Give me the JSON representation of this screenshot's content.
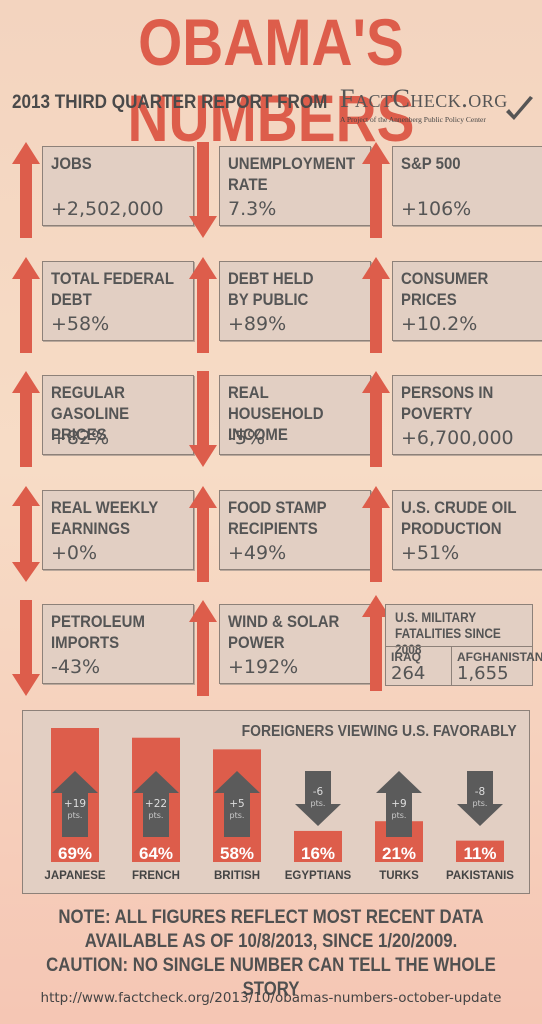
{
  "header": {
    "title": "OBAMA'S NUMBERS",
    "subtitle": "2013 THIRD QUARTER REPORT FROM",
    "logo_name": "FactCheck.org",
    "logo_tagline": "A Project of the Annenberg Public Policy Center"
  },
  "colors": {
    "accent": "#dd5d4b",
    "down_arrow_grey": "#5b5b5b",
    "box": "#e2cfc3"
  },
  "stats": [
    {
      "label": "JOBS",
      "value": "+2,502,000",
      "direction": "up"
    },
    {
      "label": "UNEMPLOYMENT\nRATE",
      "value": "7.3%",
      "direction": "down"
    },
    {
      "label": "S&P 500",
      "value": "+106%",
      "direction": "up"
    },
    {
      "label": "TOTAL FEDERAL\nDEBT",
      "value": "+58%",
      "direction": "up"
    },
    {
      "label": "DEBT HELD\nBY PUBLIC",
      "value": "+89%",
      "direction": "up"
    },
    {
      "label": "CONSUMER\nPRICES",
      "value": "+10.2%",
      "direction": "up"
    },
    {
      "label": "REGULAR GASOLINE\nPRICES",
      "value": "+82%",
      "direction": "up"
    },
    {
      "label": "REAL HOUSEHOLD\nINCOME",
      "value": "-5%",
      "direction": "down"
    },
    {
      "label": "PERSONS IN\nPOVERTY",
      "value": "+6,700,000",
      "direction": "up"
    },
    {
      "label": "REAL WEEKLY\nEARNINGS",
      "value": "+0%",
      "direction": "both"
    },
    {
      "label": "FOOD STAMP\nRECIPIENTS",
      "value": "+49%",
      "direction": "up"
    },
    {
      "label": "U.S. CRUDE OIL\nPRODUCTION",
      "value": "+51%",
      "direction": "up"
    },
    {
      "label": "PETROLEUM\nIMPORTS",
      "value": "-43%",
      "direction": "down"
    },
    {
      "label": "WIND & SOLAR\nPOWER",
      "value": "+192%",
      "direction": "up"
    }
  ],
  "military": {
    "title": "U.S. MILITARY FATALITIES SINCE 2008",
    "iraq_label": "IRAQ",
    "iraq_value": "264",
    "afghanistan_label": "AFGHANISTAN",
    "afghanistan_value": "1,655",
    "direction": "up"
  },
  "favorability": {
    "title": "FOREIGNERS VIEWING U.S. FAVORABLY",
    "pts_unit": "pts."
  },
  "chart_data": {
    "type": "bar",
    "title": "FOREIGNERS VIEWING U.S. FAVORABLY",
    "categories": [
      "JAPANESE",
      "FRENCH",
      "BRITISH",
      "EGYPTIANS",
      "TURKS",
      "PAKISTANIS"
    ],
    "values": [
      69,
      64,
      58,
      16,
      21,
      11
    ],
    "value_labels": [
      "69%",
      "64%",
      "58%",
      "16%",
      "21%",
      "11%"
    ],
    "changes": [
      "+19",
      "+22",
      "+5",
      "-6",
      "+9",
      "-8"
    ],
    "ylim": [
      0,
      80
    ],
    "grid": false
  },
  "footer": {
    "note_line1": "NOTE:  ALL FIGURES REFLECT MOST RECENT DATA",
    "note_line2": "AVAILABLE AS OF 10/8/2013, SINCE 1/20/2009.",
    "note_line3": "CAUTION: NO SINGLE NUMBER CAN TELL THE WHOLE STORY",
    "url": "http://www.factcheck.org/2013/10/obamas-numbers-october-update"
  }
}
